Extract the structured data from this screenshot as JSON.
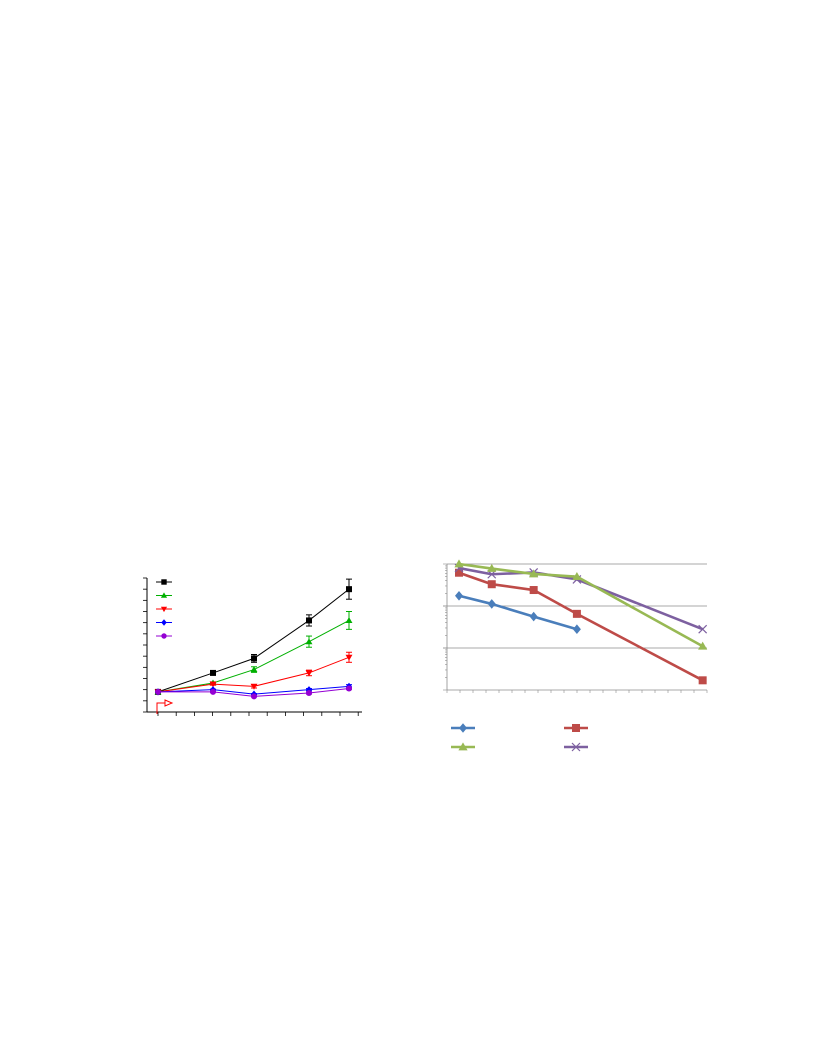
{
  "chart_data": [
    {
      "type": "line",
      "error_bars": true,
      "x": [
        0,
        1,
        2,
        3,
        4
      ],
      "ylim": [
        0,
        12
      ],
      "grid": false,
      "legend_placement": "top-left",
      "series": [
        {
          "color": "#000000",
          "marker": "square",
          "values": [
            1.8,
            3.5,
            4.8,
            8.2,
            11.0
          ],
          "errors": [
            0,
            0.1,
            0.35,
            0.5,
            0.9
          ]
        },
        {
          "color": "#00b000",
          "marker": "triangle-up",
          "values": [
            1.8,
            2.6,
            3.8,
            6.3,
            8.2
          ],
          "errors": [
            0,
            0.1,
            0.25,
            0.5,
            0.8
          ]
        },
        {
          "color": "#ff0000",
          "marker": "triangle-down",
          "values": [
            1.8,
            2.5,
            2.3,
            3.5,
            4.9
          ],
          "errors": [
            0,
            0.1,
            0.15,
            0.25,
            0.45
          ]
        },
        {
          "color": "#0000ff",
          "marker": "diamond",
          "values": [
            1.8,
            2.0,
            1.6,
            2.0,
            2.3
          ],
          "errors": [
            0,
            0.05,
            0.05,
            0.1,
            0.15
          ]
        },
        {
          "color": "#9400d3",
          "marker": "circle",
          "values": [
            1.8,
            1.8,
            1.4,
            1.7,
            2.1
          ],
          "errors": [
            0,
            0.05,
            0.05,
            0.1,
            0.1
          ]
        }
      ],
      "annotation": {
        "color": "#ff0000",
        "shape": "arrow-right"
      }
    },
    {
      "type": "line",
      "x": [
        0,
        1,
        2,
        3,
        4,
        5,
        6,
        7,
        8,
        9,
        10,
        11,
        12,
        13,
        14,
        15,
        16,
        17,
        18
      ],
      "yscale": "log",
      "ylim": [
        0.001,
        1
      ],
      "grid": true,
      "legend_placement": "bottom",
      "series": [
        {
          "color": "#4a7ebb",
          "marker": "diamond",
          "x": [
            0,
            2.5,
            5.7,
            9
          ],
          "values": [
            0.175,
            0.112,
            0.056,
            0.028
          ]
        },
        {
          "color": "#be4b48",
          "marker": "square",
          "x": [
            0,
            2.5,
            5.7,
            9,
            18.6
          ],
          "values": [
            0.62,
            0.33,
            0.24,
            0.065,
            0.0017
          ]
        },
        {
          "color": "#98b954",
          "marker": "triangle-up",
          "x": [
            0,
            2.5,
            5.7,
            9,
            18.6
          ],
          "values": [
            1.0,
            0.78,
            0.58,
            0.5,
            0.011
          ]
        },
        {
          "color": "#7d60a0",
          "marker": "x",
          "x": [
            0,
            2.5,
            5.7,
            9,
            18.6
          ],
          "values": [
            0.8,
            0.57,
            0.63,
            0.43,
            0.028
          ]
        }
      ]
    }
  ]
}
